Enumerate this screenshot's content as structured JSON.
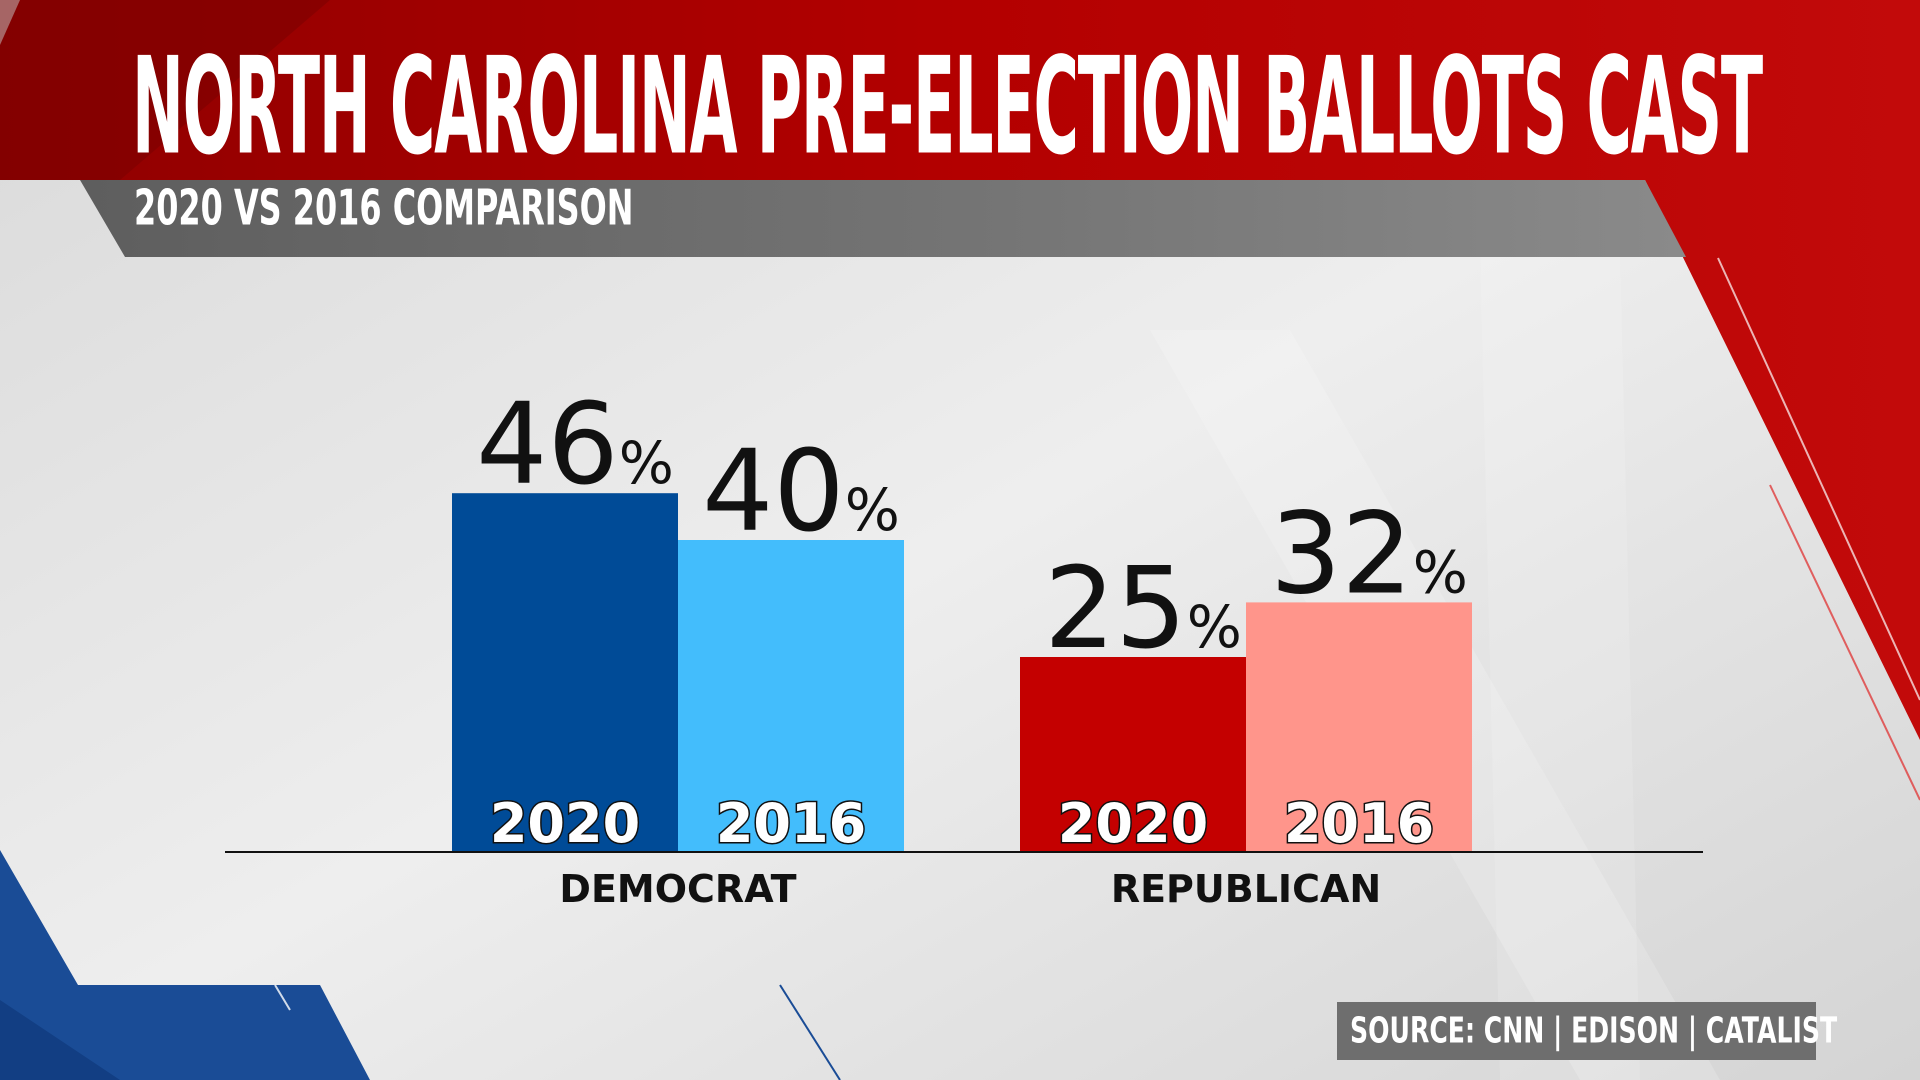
{
  "header": {
    "title": "NORTH CAROLINA PRE-ELECTION BALLOTS CAST",
    "subtitle": "2020 VS 2016 COMPARISON"
  },
  "source": "SOURCE: CNN | EDISON | CATALIST",
  "colors": {
    "dem_2020": "#004b97",
    "dem_2016": "#43bdfc",
    "rep_2020": "#c40000",
    "rep_2016": "#ff958b",
    "header_red": "#b10000",
    "subtitle_bar": "#6b6b6b"
  },
  "chart_data": {
    "type": "bar",
    "title": "NORTH CAROLINA PRE-ELECTION BALLOTS CAST",
    "subtitle": "2020 VS 2016 COMPARISON",
    "categories": [
      "DEMOCRAT",
      "REPUBLICAN"
    ],
    "series": [
      {
        "name": "2020",
        "values": [
          46,
          25
        ],
        "colors": [
          "#004b97",
          "#c40000"
        ]
      },
      {
        "name": "2016",
        "values": [
          40,
          32
        ],
        "colors": [
          "#43bdfc",
          "#ff958b"
        ]
      }
    ],
    "value_suffix": "%",
    "ylim": [
      0,
      50
    ],
    "grid": false,
    "legend": "none"
  }
}
